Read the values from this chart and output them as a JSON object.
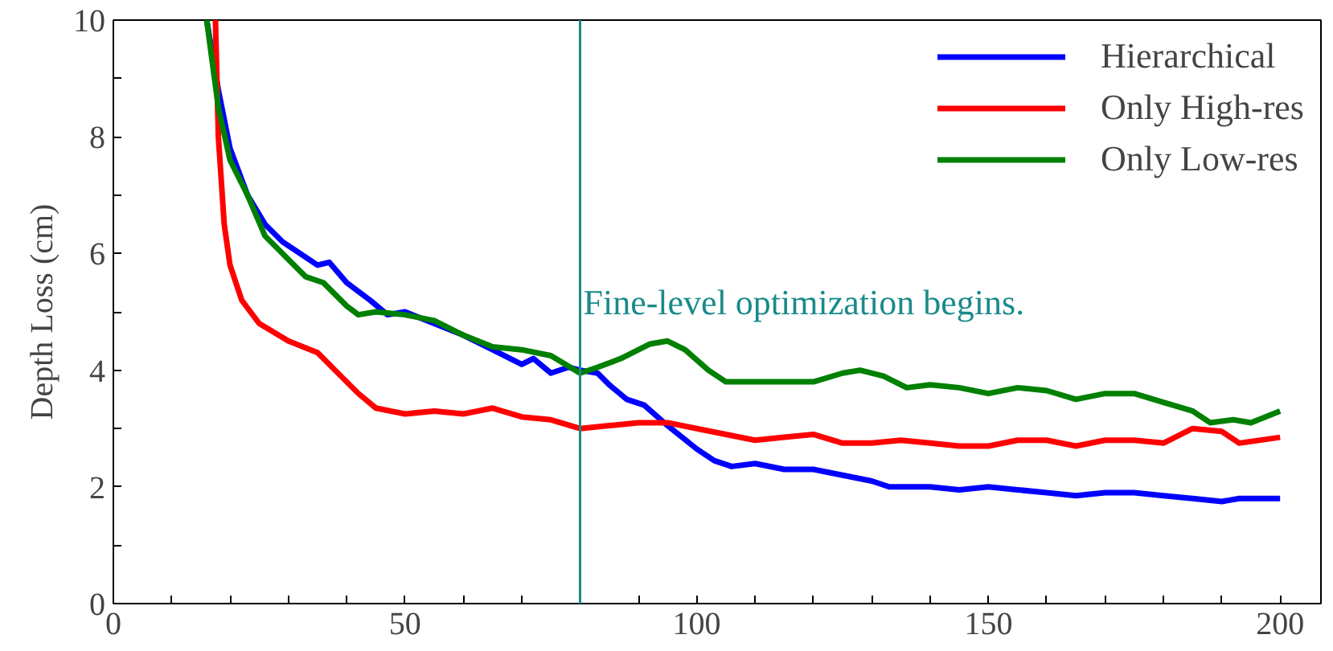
{
  "chart_data": {
    "type": "line",
    "ylabel": "Depth Loss (cm)",
    "xlim": [
      0,
      207
    ],
    "ylim": [
      0,
      10
    ],
    "xticks": [
      0,
      {
        "value": 10,
        "label": null
      },
      {
        "value": 20,
        "label": null
      },
      {
        "value": 30,
        "label": null
      },
      {
        "value": 40,
        "label": null
      },
      50,
      {
        "value": 60,
        "label": null
      },
      {
        "value": 70,
        "label": null
      },
      {
        "value": 80,
        "label": null
      },
      {
        "value": 90,
        "label": null
      },
      100,
      {
        "value": 110,
        "label": null
      },
      {
        "value": 120,
        "label": null
      },
      {
        "value": 130,
        "label": null
      },
      {
        "value": 140,
        "label": null
      },
      150,
      {
        "value": 160,
        "label": null
      },
      {
        "value": 170,
        "label": null
      },
      {
        "value": 180,
        "label": null
      },
      {
        "value": 190,
        "label": null
      },
      200
    ],
    "yticks": [
      0,
      {
        "value": 1,
        "label": null
      },
      2,
      {
        "value": 3,
        "label": null
      },
      4,
      {
        "value": 5,
        "label": null
      },
      6,
      {
        "value": 7,
        "label": null
      },
      8,
      {
        "value": 9,
        "label": null
      },
      10
    ],
    "grid": false,
    "legend": "top right",
    "line_style": "solid",
    "marker": "none",
    "ref_lines": [
      {
        "axis": "x",
        "value": 80,
        "label": "Fine-level optimization begins.",
        "color": "#1a8a8a"
      }
    ],
    "series": [
      {
        "name": "Hierarchical",
        "color": "#0000ff",
        "x": [
          16,
          18,
          20,
          23,
          26,
          29,
          32,
          35,
          37,
          40,
          44,
          47,
          50,
          55,
          60,
          65,
          70,
          72,
          75,
          78,
          80,
          83,
          85,
          88,
          91,
          95,
          100,
          103,
          106,
          110,
          115,
          120,
          125,
          130,
          133,
          140,
          145,
          150,
          155,
          160,
          165,
          170,
          175,
          180,
          185,
          190,
          193,
          200
        ],
        "values": [
          10,
          8.8,
          7.8,
          7.0,
          6.5,
          6.2,
          6.0,
          5.8,
          5.85,
          5.5,
          5.2,
          4.95,
          5.0,
          4.8,
          4.6,
          4.35,
          4.1,
          4.2,
          3.95,
          4.05,
          4.0,
          3.95,
          3.75,
          3.5,
          3.4,
          3.05,
          2.65,
          2.45,
          2.35,
          2.4,
          2.3,
          2.3,
          2.2,
          2.1,
          2.0,
          2.0,
          1.95,
          2.0,
          1.95,
          1.9,
          1.85,
          1.9,
          1.9,
          1.85,
          1.8,
          1.75,
          1.8,
          1.8
        ]
      },
      {
        "name": "Only High-res",
        "color": "#ff0000",
        "x": [
          17.5,
          18,
          19,
          20,
          22,
          25,
          30,
          35,
          38,
          42,
          45,
          50,
          55,
          60,
          65,
          70,
          75,
          80,
          85,
          90,
          95,
          100,
          105,
          110,
          115,
          120,
          125,
          130,
          135,
          140,
          145,
          150,
          155,
          160,
          165,
          170,
          175,
          180,
          185,
          190,
          193,
          200
        ],
        "values": [
          10,
          8,
          6.5,
          5.8,
          5.2,
          4.8,
          4.5,
          4.3,
          4.0,
          3.6,
          3.35,
          3.25,
          3.3,
          3.25,
          3.35,
          3.2,
          3.15,
          3.0,
          3.05,
          3.1,
          3.1,
          3.0,
          2.9,
          2.8,
          2.85,
          2.9,
          2.75,
          2.75,
          2.8,
          2.75,
          2.7,
          2.7,
          2.8,
          2.8,
          2.7,
          2.8,
          2.8,
          2.75,
          3.0,
          2.95,
          2.75,
          2.85
        ]
      },
      {
        "name": "Only Low-res",
        "color": "#008000",
        "x": [
          16,
          18,
          20,
          23,
          26,
          30,
          33,
          36,
          40,
          42,
          45,
          50,
          55,
          60,
          65,
          70,
          75,
          80,
          83,
          87,
          92,
          95,
          98,
          102,
          105,
          110,
          115,
          120,
          125,
          128,
          132,
          136,
          140,
          145,
          150,
          155,
          160,
          165,
          170,
          175,
          180,
          185,
          188,
          192,
          195,
          200
        ],
        "values": [
          10,
          8.5,
          7.6,
          7.0,
          6.3,
          5.9,
          5.6,
          5.5,
          5.1,
          4.95,
          5.0,
          4.95,
          4.85,
          4.6,
          4.4,
          4.35,
          4.25,
          3.95,
          4.05,
          4.2,
          4.45,
          4.5,
          4.35,
          4.0,
          3.8,
          3.8,
          3.8,
          3.8,
          3.95,
          4.0,
          3.9,
          3.7,
          3.75,
          3.7,
          3.6,
          3.7,
          3.65,
          3.5,
          3.6,
          3.6,
          3.45,
          3.3,
          3.1,
          3.15,
          3.1,
          3.3
        ]
      }
    ]
  }
}
